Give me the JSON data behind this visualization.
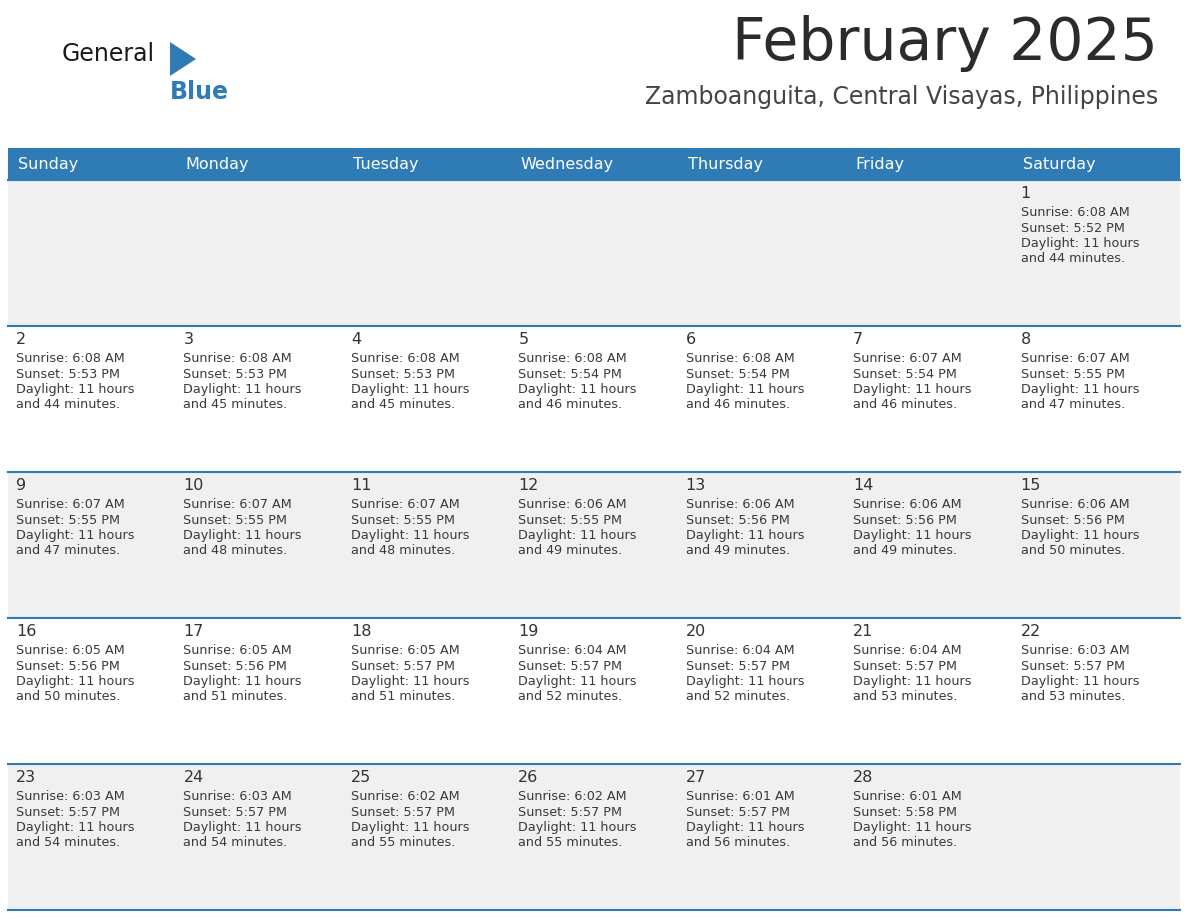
{
  "title": "February 2025",
  "subtitle": "Zamboanguita, Central Visayas, Philippines",
  "days_of_week": [
    "Sunday",
    "Monday",
    "Tuesday",
    "Wednesday",
    "Thursday",
    "Friday",
    "Saturday"
  ],
  "header_bg": "#2E7BB5",
  "header_text": "#FFFFFF",
  "cell_bg_odd": "#F0F0F0",
  "cell_bg_even": "#FFFFFF",
  "cell_text": "#333333",
  "day_num_color": "#333333",
  "border_color": "#2E7BB5",
  "title_color": "#2B2B2B",
  "subtitle_color": "#444444",
  "logo_general_color": "#1A1A1A",
  "logo_blue_color": "#2E7BB5",
  "calendar_data": [
    {
      "day": 1,
      "col": 6,
      "row": 0,
      "sunrise": "6:08 AM",
      "sunset": "5:52 PM",
      "daylight_min": 44
    },
    {
      "day": 2,
      "col": 0,
      "row": 1,
      "sunrise": "6:08 AM",
      "sunset": "5:53 PM",
      "daylight_min": 44
    },
    {
      "day": 3,
      "col": 1,
      "row": 1,
      "sunrise": "6:08 AM",
      "sunset": "5:53 PM",
      "daylight_min": 45
    },
    {
      "day": 4,
      "col": 2,
      "row": 1,
      "sunrise": "6:08 AM",
      "sunset": "5:53 PM",
      "daylight_min": 45
    },
    {
      "day": 5,
      "col": 3,
      "row": 1,
      "sunrise": "6:08 AM",
      "sunset": "5:54 PM",
      "daylight_min": 46
    },
    {
      "day": 6,
      "col": 4,
      "row": 1,
      "sunrise": "6:08 AM",
      "sunset": "5:54 PM",
      "daylight_min": 46
    },
    {
      "day": 7,
      "col": 5,
      "row": 1,
      "sunrise": "6:07 AM",
      "sunset": "5:54 PM",
      "daylight_min": 46
    },
    {
      "day": 8,
      "col": 6,
      "row": 1,
      "sunrise": "6:07 AM",
      "sunset": "5:55 PM",
      "daylight_min": 47
    },
    {
      "day": 9,
      "col": 0,
      "row": 2,
      "sunrise": "6:07 AM",
      "sunset": "5:55 PM",
      "daylight_min": 47
    },
    {
      "day": 10,
      "col": 1,
      "row": 2,
      "sunrise": "6:07 AM",
      "sunset": "5:55 PM",
      "daylight_min": 48
    },
    {
      "day": 11,
      "col": 2,
      "row": 2,
      "sunrise": "6:07 AM",
      "sunset": "5:55 PM",
      "daylight_min": 48
    },
    {
      "day": 12,
      "col": 3,
      "row": 2,
      "sunrise": "6:06 AM",
      "sunset": "5:55 PM",
      "daylight_min": 49
    },
    {
      "day": 13,
      "col": 4,
      "row": 2,
      "sunrise": "6:06 AM",
      "sunset": "5:56 PM",
      "daylight_min": 49
    },
    {
      "day": 14,
      "col": 5,
      "row": 2,
      "sunrise": "6:06 AM",
      "sunset": "5:56 PM",
      "daylight_min": 49
    },
    {
      "day": 15,
      "col": 6,
      "row": 2,
      "sunrise": "6:06 AM",
      "sunset": "5:56 PM",
      "daylight_min": 50
    },
    {
      "day": 16,
      "col": 0,
      "row": 3,
      "sunrise": "6:05 AM",
      "sunset": "5:56 PM",
      "daylight_min": 50
    },
    {
      "day": 17,
      "col": 1,
      "row": 3,
      "sunrise": "6:05 AM",
      "sunset": "5:56 PM",
      "daylight_min": 51
    },
    {
      "day": 18,
      "col": 2,
      "row": 3,
      "sunrise": "6:05 AM",
      "sunset": "5:57 PM",
      "daylight_min": 51
    },
    {
      "day": 19,
      "col": 3,
      "row": 3,
      "sunrise": "6:04 AM",
      "sunset": "5:57 PM",
      "daylight_min": 52
    },
    {
      "day": 20,
      "col": 4,
      "row": 3,
      "sunrise": "6:04 AM",
      "sunset": "5:57 PM",
      "daylight_min": 52
    },
    {
      "day": 21,
      "col": 5,
      "row": 3,
      "sunrise": "6:04 AM",
      "sunset": "5:57 PM",
      "daylight_min": 53
    },
    {
      "day": 22,
      "col": 6,
      "row": 3,
      "sunrise": "6:03 AM",
      "sunset": "5:57 PM",
      "daylight_min": 53
    },
    {
      "day": 23,
      "col": 0,
      "row": 4,
      "sunrise": "6:03 AM",
      "sunset": "5:57 PM",
      "daylight_min": 54
    },
    {
      "day": 24,
      "col": 1,
      "row": 4,
      "sunrise": "6:03 AM",
      "sunset": "5:57 PM",
      "daylight_min": 54
    },
    {
      "day": 25,
      "col": 2,
      "row": 4,
      "sunrise": "6:02 AM",
      "sunset": "5:57 PM",
      "daylight_min": 55
    },
    {
      "day": 26,
      "col": 3,
      "row": 4,
      "sunrise": "6:02 AM",
      "sunset": "5:57 PM",
      "daylight_min": 55
    },
    {
      "day": 27,
      "col": 4,
      "row": 4,
      "sunrise": "6:01 AM",
      "sunset": "5:57 PM",
      "daylight_min": 56
    },
    {
      "day": 28,
      "col": 5,
      "row": 4,
      "sunrise": "6:01 AM",
      "sunset": "5:58 PM",
      "daylight_min": 56
    }
  ],
  "num_rows": 5,
  "num_cols": 7
}
